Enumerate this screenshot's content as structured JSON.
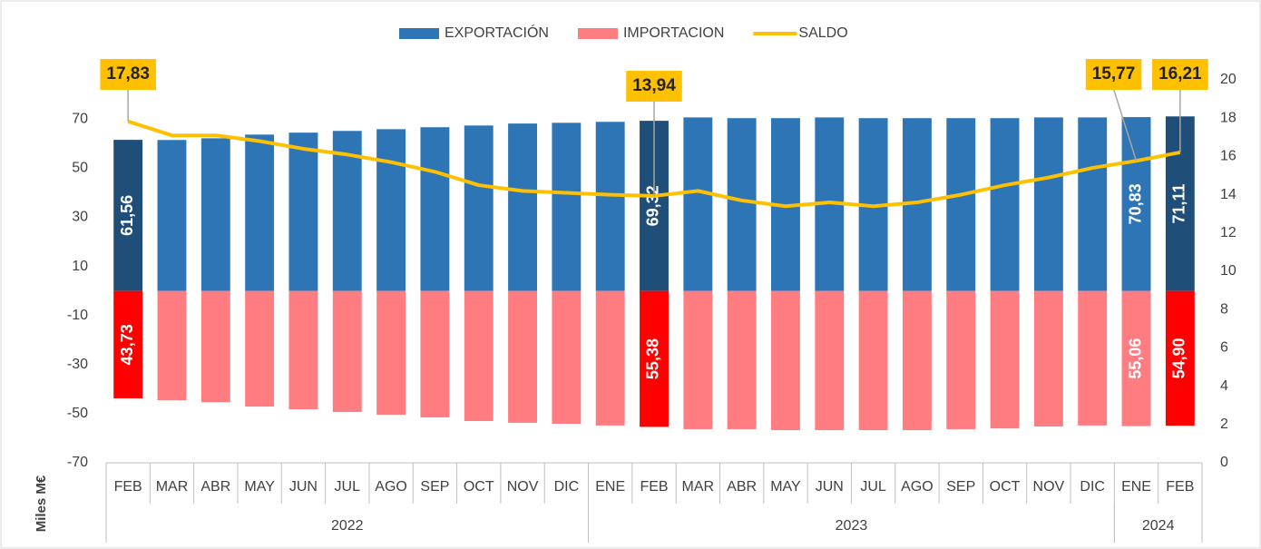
{
  "chart_data": {
    "type": "bar",
    "y_axis_label": "Miles M€",
    "categories": [
      "FEB",
      "MAR",
      "ABR",
      "MAY",
      "JUN",
      "JUL",
      "AGO",
      "SEP",
      "OCT",
      "NOV",
      "DIC",
      "ENE",
      "FEB",
      "MAR",
      "ABR",
      "MAY",
      "JUN",
      "JUL",
      "AGO",
      "SEP",
      "OCT",
      "NOV",
      "DIC",
      "ENE",
      "FEB"
    ],
    "groups": [
      {
        "label": "2022",
        "count": 11
      },
      {
        "label": "2023",
        "count": 12
      },
      {
        "label": "2024",
        "count": 2
      }
    ],
    "series": [
      {
        "name": "EXPORTACIÓN",
        "color": "#2e75b6",
        "colors": [
          "#1f4e79",
          "#2e75b6",
          "#2e75b6",
          "#2e75b6",
          "#2e75b6",
          "#2e75b6",
          "#2e75b6",
          "#2e75b6",
          "#2e75b6",
          "#2e75b6",
          "#2e75b6",
          "#2e75b6",
          "#1f4e79",
          "#2e75b6",
          "#2e75b6",
          "#2e75b6",
          "#2e75b6",
          "#2e75b6",
          "#2e75b6",
          "#2e75b6",
          "#2e75b6",
          "#2e75b6",
          "#2e75b6",
          "#2e75b6",
          "#1f4e79"
        ],
        "values": [
          61.56,
          61.5,
          62.2,
          63.7,
          64.5,
          65.2,
          65.9,
          66.7,
          67.4,
          68.2,
          68.5,
          68.9,
          69.32,
          70.7,
          70.4,
          70.4,
          70.7,
          70.4,
          70.4,
          70.4,
          70.4,
          70.7,
          70.7,
          70.83,
          71.11
        ],
        "value_labels": [
          "61,56",
          null,
          null,
          null,
          null,
          null,
          null,
          null,
          null,
          null,
          null,
          null,
          "69,32",
          null,
          null,
          null,
          null,
          null,
          null,
          null,
          null,
          null,
          null,
          "70,83",
          "71,11"
        ]
      },
      {
        "name": "IMPORTACION",
        "color": "#ff7c80",
        "colors": [
          "#ff0000",
          "#ff7c80",
          "#ff7c80",
          "#ff7c80",
          "#ff7c80",
          "#ff7c80",
          "#ff7c80",
          "#ff7c80",
          "#ff7c80",
          "#ff7c80",
          "#ff7c80",
          "#ff7c80",
          "#ff0000",
          "#ff7c80",
          "#ff7c80",
          "#ff7c80",
          "#ff7c80",
          "#ff7c80",
          "#ff7c80",
          "#ff7c80",
          "#ff7c80",
          "#ff7c80",
          "#ff7c80",
          "#ff7c80",
          "#ff0000"
        ],
        "values": [
          -43.73,
          -44.5,
          -45.3,
          -47.1,
          -48.2,
          -49.3,
          -50.4,
          -51.5,
          -53.0,
          -53.7,
          -54.1,
          -54.8,
          -55.38,
          -56.3,
          -56.3,
          -56.7,
          -56.7,
          -56.7,
          -56.7,
          -56.3,
          -56.0,
          -55.2,
          -54.8,
          -55.06,
          -54.9
        ],
        "value_labels": [
          "43,73",
          null,
          null,
          null,
          null,
          null,
          null,
          null,
          null,
          null,
          null,
          null,
          "55,38",
          null,
          null,
          null,
          null,
          null,
          null,
          null,
          null,
          null,
          null,
          "55,06",
          "54,90"
        ]
      },
      {
        "name": "SALDO",
        "color": "#ffc000",
        "type": "line",
        "axis": "y2",
        "values": [
          17.83,
          17.1,
          17.1,
          16.8,
          16.4,
          16.1,
          15.7,
          15.2,
          14.5,
          14.2,
          14.1,
          14.0,
          13.94,
          14.2,
          13.7,
          13.4,
          13.6,
          13.4,
          13.6,
          14.0,
          14.5,
          14.9,
          15.4,
          15.77,
          16.21
        ],
        "value_labels": [
          "17,83",
          null,
          null,
          null,
          null,
          null,
          null,
          null,
          null,
          null,
          null,
          null,
          "13,94",
          null,
          null,
          null,
          null,
          null,
          null,
          null,
          null,
          null,
          null,
          "15,77",
          "16,21"
        ]
      }
    ],
    "ylim": [
      -70,
      86
    ],
    "yticks": [
      -70,
      -50,
      -30,
      -10,
      10,
      30,
      50,
      70
    ],
    "y2lim": [
      0,
      20
    ],
    "y2ticks": [
      0,
      2,
      4,
      6,
      8,
      10,
      12,
      14,
      16,
      18,
      20
    ],
    "legend": "top",
    "grid": false
  }
}
